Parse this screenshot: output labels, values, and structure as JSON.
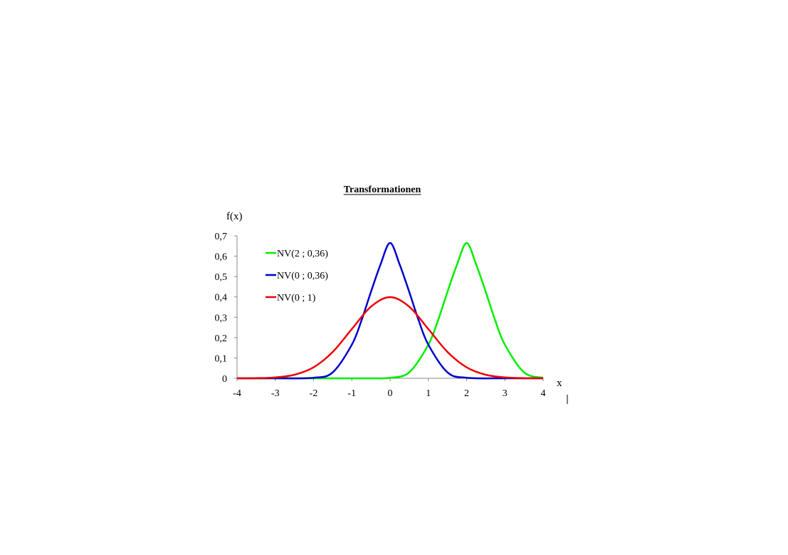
{
  "chart_data": {
    "type": "line",
    "title": "Transformationen",
    "xlabel": "x",
    "ylabel": "f(x)",
    "xlim": [
      -4,
      4
    ],
    "ylim": [
      0,
      0.7
    ],
    "x_ticks": [
      "-4",
      "-3",
      "-2",
      "-1",
      "0",
      "1",
      "2",
      "3",
      "4"
    ],
    "y_ticks": [
      "0",
      "0,1",
      "0,2",
      "0,3",
      "0,4",
      "0,5",
      "0,6",
      "0,7"
    ],
    "grid": false,
    "legend_position": "top-left",
    "series": [
      {
        "name": "NV(2 ; 0,36)",
        "color": "#00ee00",
        "x": [
          -4,
          -3,
          -2,
          -1,
          -0.5,
          0,
          0.5,
          1,
          1.25,
          1.5,
          1.75,
          2,
          2.25,
          2.5,
          2.75,
          3,
          3.5,
          4
        ],
        "y": [
          0,
          0,
          0,
          0,
          0,
          0.0026,
          0.0293,
          0.1652,
          0.2832,
          0.4248,
          0.5592,
          0.6649,
          0.5592,
          0.4248,
          0.2832,
          0.1652,
          0.0293,
          0.0026
        ]
      },
      {
        "name": "NV(0 ; 0,36)",
        "color": "#0000cc",
        "x": [
          -4,
          -3,
          -2,
          -1.5,
          -1,
          -0.75,
          -0.5,
          -0.25,
          0,
          0.25,
          0.5,
          0.75,
          1,
          1.5,
          2,
          3,
          4
        ],
        "y": [
          0,
          0,
          0.0026,
          0.0293,
          0.1652,
          0.2832,
          0.4248,
          0.5592,
          0.6649,
          0.5592,
          0.4248,
          0.2832,
          0.1652,
          0.0293,
          0.0026,
          0,
          0
        ]
      },
      {
        "name": "NV(0 ; 1)",
        "color": "#ee0000",
        "x": [
          -4,
          -3.5,
          -3,
          -2.5,
          -2,
          -1.5,
          -1,
          -0.5,
          0,
          0.5,
          1,
          1.5,
          2,
          2.5,
          3,
          3.5,
          4
        ],
        "y": [
          0.0001,
          0.0009,
          0.0044,
          0.0175,
          0.054,
          0.1295,
          0.242,
          0.3521,
          0.3989,
          0.3521,
          0.242,
          0.1295,
          0.054,
          0.0175,
          0.0044,
          0.0009,
          0.0001
        ]
      }
    ]
  }
}
